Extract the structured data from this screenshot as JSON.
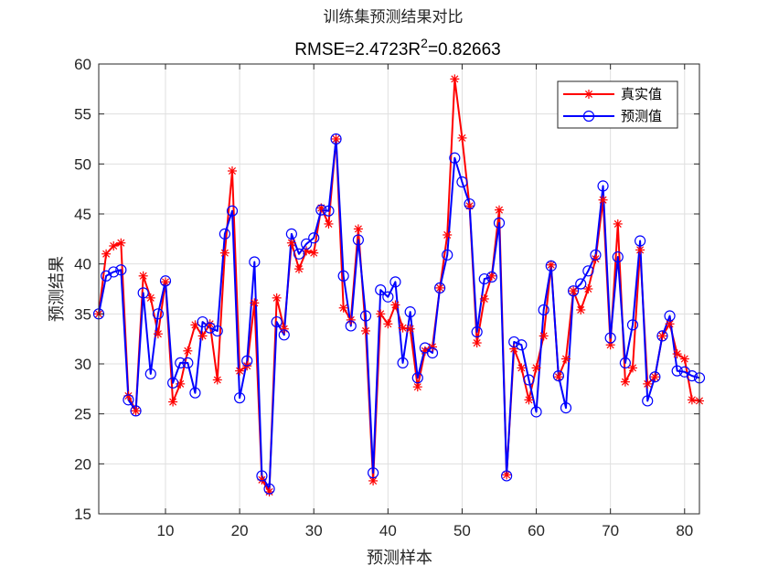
{
  "chart_data": {
    "type": "line",
    "title": "训练集预测结果对比",
    "subtitle": {
      "rmse_label": "RMSE=",
      "rmse_value": "2.4723",
      "r2_label": "R",
      "r2_exponent": "2",
      "r2_value": "=0.82663"
    },
    "xlabel": "预测样本",
    "ylabel": "预测结果",
    "xlim": [
      1,
      82
    ],
    "ylim": [
      15,
      60
    ],
    "xticks": [
      10,
      20,
      30,
      40,
      50,
      60,
      70,
      80
    ],
    "yticks": [
      15,
      20,
      25,
      30,
      35,
      40,
      45,
      50,
      55,
      60
    ],
    "grid": true,
    "legend_position": "top-right",
    "x": [
      1,
      2,
      3,
      4,
      5,
      6,
      7,
      8,
      9,
      10,
      11,
      12,
      13,
      14,
      15,
      16,
      17,
      18,
      19,
      20,
      21,
      22,
      23,
      24,
      25,
      26,
      27,
      28,
      29,
      30,
      31,
      32,
      33,
      34,
      35,
      36,
      37,
      38,
      39,
      40,
      41,
      42,
      43,
      44,
      45,
      46,
      47,
      48,
      49,
      50,
      51,
      52,
      53,
      54,
      55,
      56,
      57,
      58,
      59,
      60,
      61,
      62,
      63,
      64,
      65,
      66,
      67,
      68,
      69,
      70,
      71,
      72,
      73,
      74,
      75,
      76,
      77,
      78,
      79,
      80,
      81,
      82
    ],
    "series": [
      {
        "name": "真实值",
        "color": "#ff0000",
        "marker": "asterisk",
        "values": [
          35.0,
          41.0,
          41.8,
          42.1,
          26.8,
          25.3,
          38.8,
          36.6,
          33.0,
          38.2,
          26.2,
          28.0,
          31.3,
          33.9,
          32.8,
          34.0,
          28.4,
          41.1,
          49.3,
          29.3,
          29.8,
          36.1,
          18.4,
          17.2,
          36.6,
          33.5,
          42.1,
          39.5,
          41.3,
          41.1,
          45.6,
          44.0,
          52.5,
          35.6,
          34.4,
          43.5,
          33.3,
          18.3,
          35.0,
          34.0,
          35.9,
          33.6,
          33.5,
          27.7,
          31.3,
          31.7,
          37.6,
          42.9,
          58.5,
          52.6,
          45.8,
          32.1,
          36.5,
          38.8,
          45.4,
          18.9,
          31.5,
          29.6,
          26.4,
          29.6,
          32.8,
          39.9,
          28.7,
          30.5,
          37.3,
          35.4,
          37.5,
          40.5,
          46.4,
          31.9,
          44.0,
          28.2,
          29.6,
          41.4,
          28.0,
          28.7,
          32.8,
          34.0,
          31.0,
          30.5,
          26.4,
          26.3
        ]
      },
      {
        "name": "预测值",
        "color": "#0000ff",
        "marker": "circle",
        "values": [
          35.0,
          38.8,
          39.2,
          39.4,
          26.4,
          25.3,
          37.1,
          29.0,
          35.0,
          38.3,
          28.1,
          30.1,
          30.1,
          27.1,
          34.2,
          33.6,
          33.3,
          43.0,
          45.3,
          26.6,
          30.3,
          40.2,
          18.8,
          17.5,
          34.2,
          32.9,
          43.0,
          41.0,
          42.0,
          42.6,
          45.4,
          45.3,
          52.5,
          38.8,
          33.8,
          42.4,
          34.8,
          19.1,
          37.4,
          36.7,
          38.2,
          30.1,
          35.2,
          28.6,
          31.6,
          31.1,
          37.6,
          40.9,
          50.6,
          48.2,
          46.0,
          33.2,
          38.5,
          38.7,
          44.1,
          18.8,
          32.2,
          31.9,
          28.4,
          25.2,
          35.4,
          39.8,
          28.8,
          25.6,
          37.3,
          38.0,
          39.3,
          40.9,
          47.8,
          32.6,
          40.7,
          30.1,
          33.9,
          42.3,
          26.3,
          28.7,
          32.8,
          34.8,
          29.3,
          29.2,
          28.8,
          28.6
        ]
      }
    ]
  }
}
